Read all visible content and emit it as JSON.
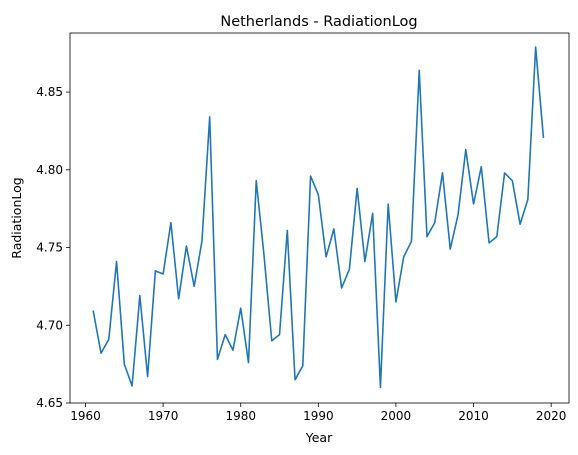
{
  "chart_data": {
    "type": "line",
    "title": "Netherlands - RadiationLog",
    "xlabel": "Year",
    "ylabel": "RadiationLog",
    "xlim": [
      1958,
      2022.3
    ],
    "ylim": [
      4.65,
      4.888
    ],
    "xticks": [
      1960,
      1970,
      1980,
      1990,
      2000,
      2010,
      2020
    ],
    "xtick_labels": [
      "1960",
      "1970",
      "1980",
      "1990",
      "2000",
      "2010",
      "2020"
    ],
    "yticks": [
      4.65,
      4.7,
      4.75,
      4.8,
      4.85
    ],
    "ytick_labels": [
      "4.65",
      "4.70",
      "4.75",
      "4.80",
      "4.85"
    ],
    "grid": false,
    "series": [
      {
        "color": "#1f77b4",
        "x": [
          1961,
          1962,
          1963,
          1964,
          1965,
          1966,
          1967,
          1968,
          1969,
          1970,
          1971,
          1972,
          1973,
          1974,
          1975,
          1976,
          1977,
          1978,
          1979,
          1980,
          1981,
          1982,
          1983,
          1984,
          1985,
          1986,
          1987,
          1988,
          1989,
          1990,
          1991,
          1992,
          1993,
          1994,
          1995,
          1996,
          1997,
          1998,
          1999,
          2000,
          2001,
          2002,
          2003,
          2004,
          2005,
          2006,
          2007,
          2008,
          2009,
          2010,
          2011,
          2012,
          2013,
          2014,
          2015,
          2016,
          2017,
          2018,
          2019
        ],
        "y": [
          4.709,
          4.682,
          4.691,
          4.741,
          4.675,
          4.661,
          4.719,
          4.667,
          4.735,
          4.733,
          4.766,
          4.717,
          4.751,
          4.725,
          4.754,
          4.834,
          4.678,
          4.694,
          4.684,
          4.711,
          4.676,
          4.793,
          4.745,
          4.69,
          4.694,
          4.761,
          4.665,
          4.674,
          4.796,
          4.784,
          4.744,
          4.762,
          4.724,
          4.736,
          4.788,
          4.741,
          4.772,
          4.66,
          4.778,
          4.715,
          4.744,
          4.754,
          4.864,
          4.757,
          4.766,
          4.798,
          4.749,
          4.771,
          4.813,
          4.778,
          4.802,
          4.753,
          4.757,
          4.798,
          4.793,
          4.765,
          4.781,
          4.879,
          4.821
        ]
      }
    ]
  }
}
